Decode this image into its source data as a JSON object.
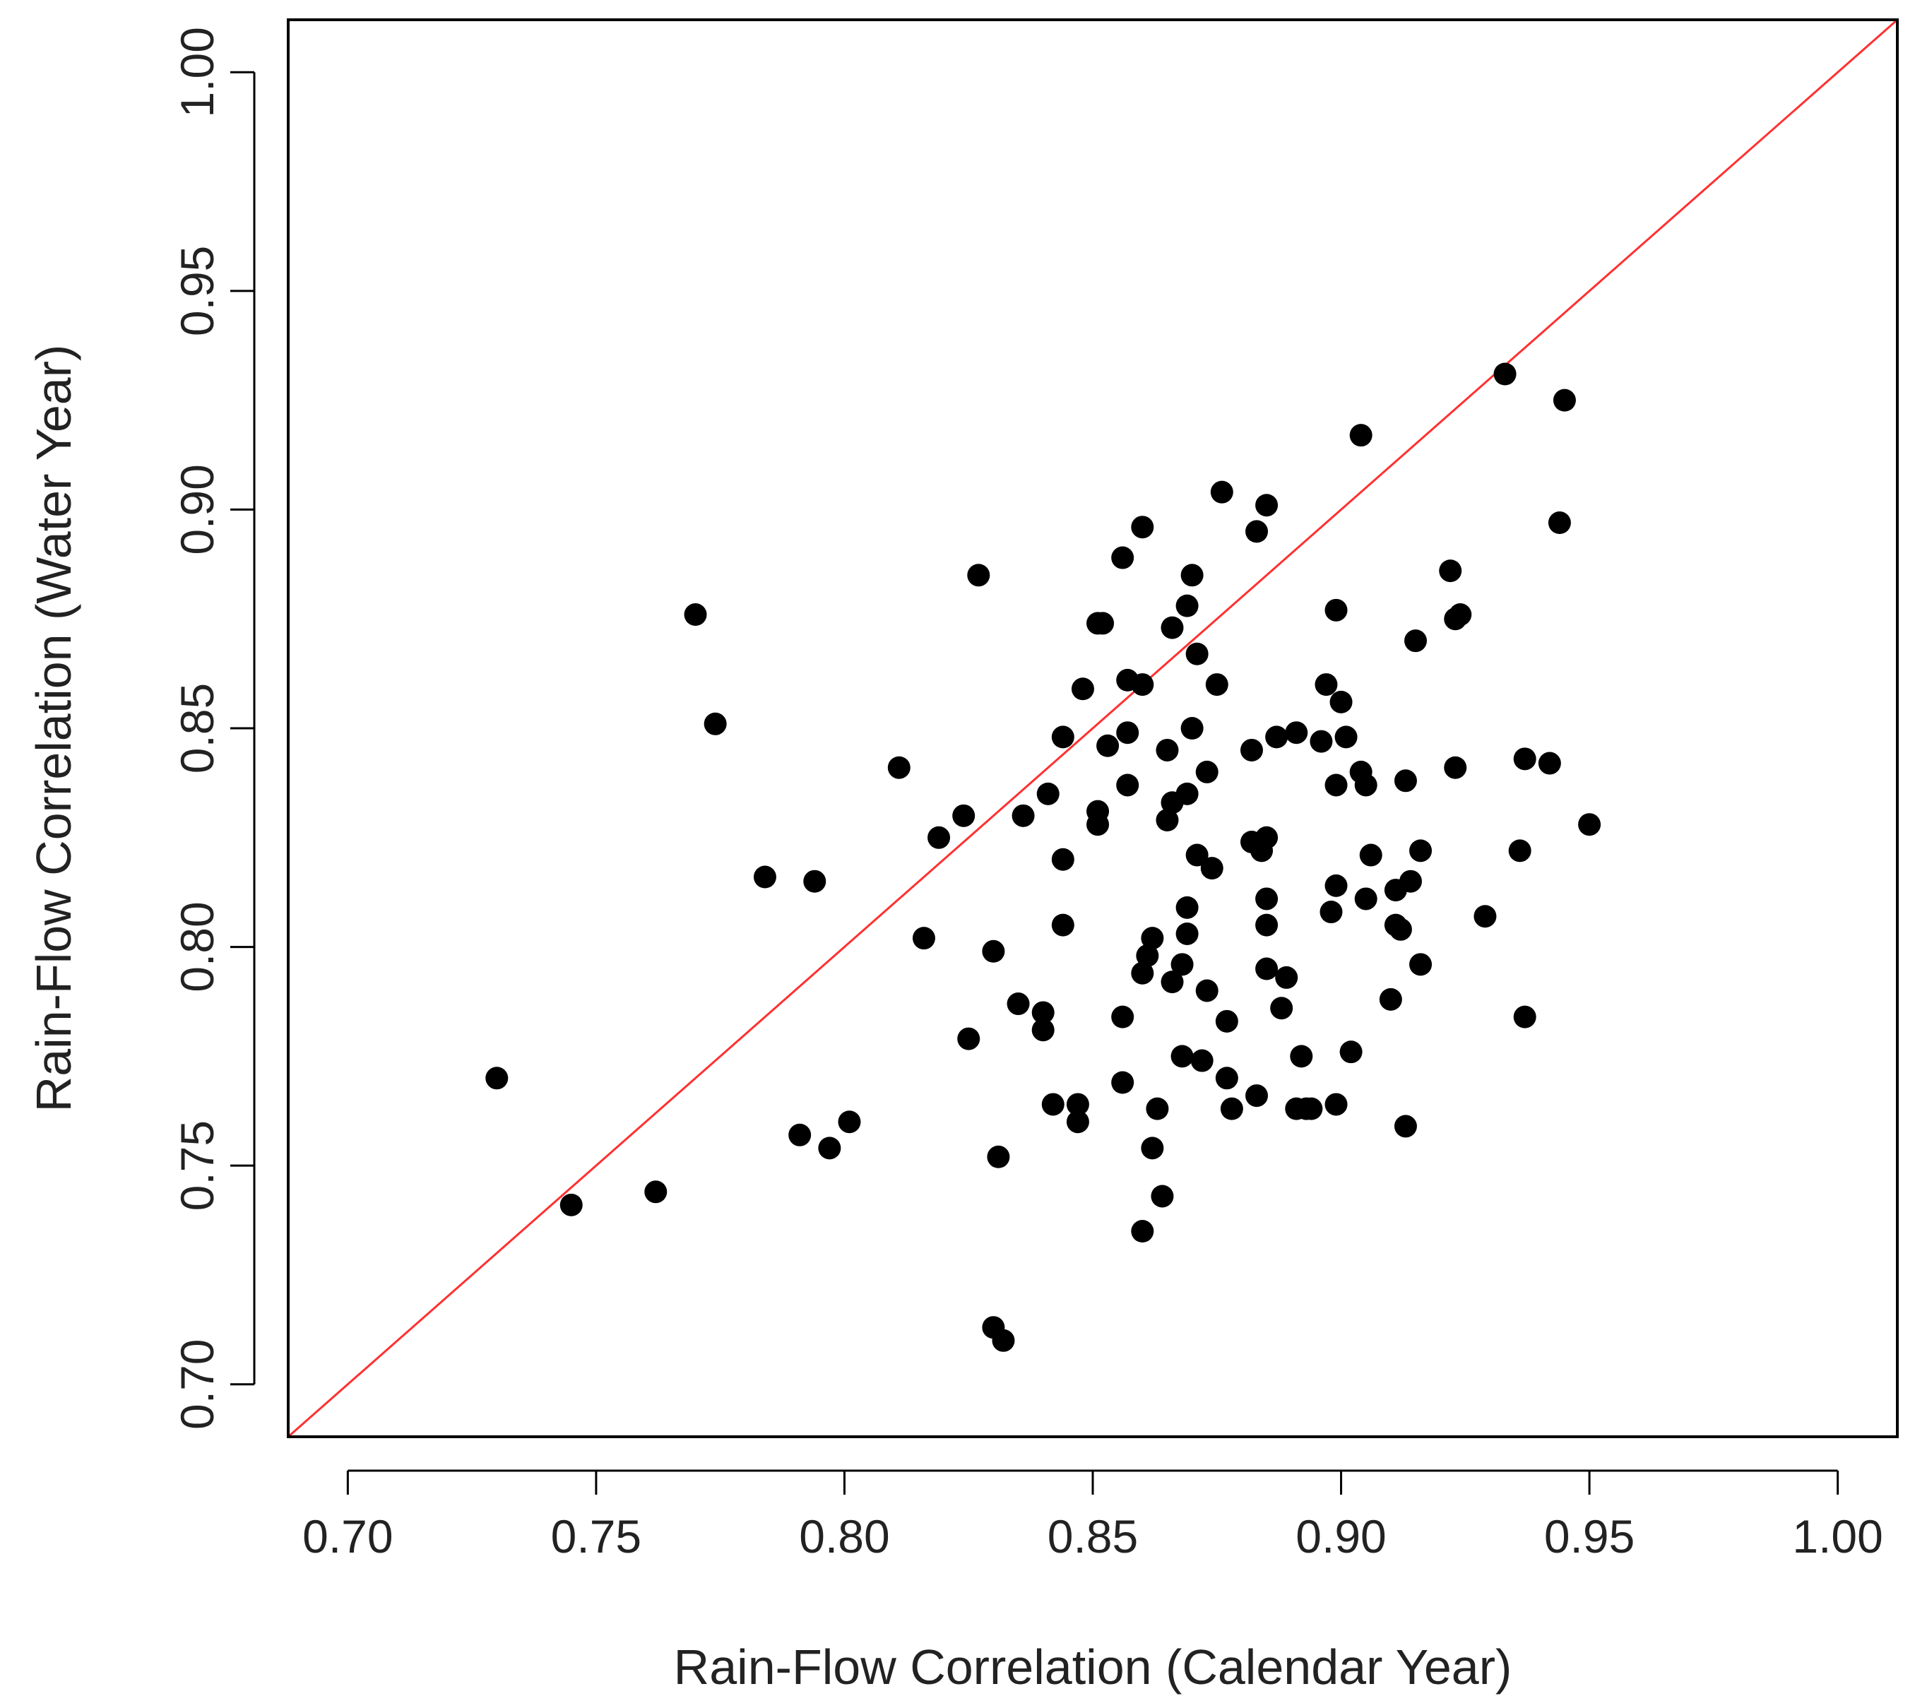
{
  "chart_data": {
    "type": "scatter",
    "title": "",
    "xlabel": "Rain-Flow Correlation (Calendar Year)",
    "ylabel": "Rain-Flow Correlation (Water Year)",
    "xlim": [
      0.688,
      1.012
    ],
    "ylim": [
      0.688,
      1.012
    ],
    "x_ticks": [
      0.7,
      0.75,
      0.8,
      0.85,
      0.9,
      0.95,
      1.0
    ],
    "y_ticks": [
      0.7,
      0.75,
      0.8,
      0.85,
      0.9,
      0.95,
      1.0
    ],
    "x_tick_labels": [
      "0.70",
      "0.75",
      "0.80",
      "0.85",
      "0.90",
      "0.95",
      "1.00"
    ],
    "y_tick_labels": [
      "0.70",
      "0.75",
      "0.80",
      "0.85",
      "0.90",
      "0.95",
      "1.00"
    ],
    "grid": false,
    "reference_line": {
      "type": "y=x",
      "color": "#ff3030"
    },
    "point_color": "#000000",
    "axis_color": "#000000",
    "points": [
      [
        0.73,
        0.77
      ],
      [
        0.745,
        0.741
      ],
      [
        0.762,
        0.744
      ],
      [
        0.77,
        0.876
      ],
      [
        0.774,
        0.851
      ],
      [
        0.784,
        0.816
      ],
      [
        0.791,
        0.757
      ],
      [
        0.794,
        0.815
      ],
      [
        0.797,
        0.754
      ],
      [
        0.801,
        0.76
      ],
      [
        0.811,
        0.841
      ],
      [
        0.816,
        0.802
      ],
      [
        0.819,
        0.825
      ],
      [
        0.824,
        0.83
      ],
      [
        0.825,
        0.779
      ],
      [
        0.827,
        0.885
      ],
      [
        0.83,
        0.799
      ],
      [
        0.831,
        0.752
      ],
      [
        0.83,
        0.713
      ],
      [
        0.832,
        0.71
      ],
      [
        0.835,
        0.787
      ],
      [
        0.836,
        0.83
      ],
      [
        0.84,
        0.785
      ],
      [
        0.84,
        0.781
      ],
      [
        0.841,
        0.835
      ],
      [
        0.842,
        0.764
      ],
      [
        0.844,
        0.848
      ],
      [
        0.844,
        0.82
      ],
      [
        0.844,
        0.805
      ],
      [
        0.847,
        0.764
      ],
      [
        0.847,
        0.76
      ],
      [
        0.848,
        0.859
      ],
      [
        0.851,
        0.874
      ],
      [
        0.851,
        0.831
      ],
      [
        0.851,
        0.828
      ],
      [
        0.852,
        0.874
      ],
      [
        0.853,
        0.846
      ],
      [
        0.856,
        0.889
      ],
      [
        0.856,
        0.784
      ],
      [
        0.856,
        0.769
      ],
      [
        0.857,
        0.861
      ],
      [
        0.857,
        0.849
      ],
      [
        0.857,
        0.837
      ],
      [
        0.86,
        0.896
      ],
      [
        0.86,
        0.86
      ],
      [
        0.86,
        0.794
      ],
      [
        0.861,
        0.798
      ],
      [
        0.86,
        0.735
      ],
      [
        0.862,
        0.802
      ],
      [
        0.862,
        0.754
      ],
      [
        0.863,
        0.763
      ],
      [
        0.864,
        0.743
      ],
      [
        0.865,
        0.845
      ],
      [
        0.865,
        0.829
      ],
      [
        0.866,
        0.873
      ],
      [
        0.866,
        0.833
      ],
      [
        0.866,
        0.792
      ],
      [
        0.868,
        0.796
      ],
      [
        0.868,
        0.775
      ],
      [
        0.869,
        0.878
      ],
      [
        0.869,
        0.835
      ],
      [
        0.869,
        0.809
      ],
      [
        0.869,
        0.803
      ],
      [
        0.87,
        0.885
      ],
      [
        0.87,
        0.85
      ],
      [
        0.871,
        0.821
      ],
      [
        0.871,
        0.867
      ],
      [
        0.872,
        0.774
      ],
      [
        0.873,
        0.84
      ],
      [
        0.873,
        0.79
      ],
      [
        0.874,
        0.818
      ],
      [
        0.875,
        0.86
      ],
      [
        0.876,
        0.904
      ],
      [
        0.877,
        0.783
      ],
      [
        0.877,
        0.77
      ],
      [
        0.878,
        0.763
      ],
      [
        0.882,
        0.845
      ],
      [
        0.882,
        0.824
      ],
      [
        0.883,
        0.895
      ],
      [
        0.883,
        0.766
      ],
      [
        0.884,
        0.822
      ],
      [
        0.885,
        0.825
      ],
      [
        0.885,
        0.811
      ],
      [
        0.885,
        0.805
      ],
      [
        0.885,
        0.795
      ],
      [
        0.885,
        0.901
      ],
      [
        0.887,
        0.848
      ],
      [
        0.888,
        0.786
      ],
      [
        0.889,
        0.793
      ],
      [
        0.891,
        0.849
      ],
      [
        0.891,
        0.763
      ],
      [
        0.892,
        0.775
      ],
      [
        0.893,
        0.763
      ],
      [
        0.894,
        0.763
      ],
      [
        0.896,
        0.847
      ],
      [
        0.897,
        0.86
      ],
      [
        0.898,
        0.808
      ],
      [
        0.899,
        0.877
      ],
      [
        0.899,
        0.837
      ],
      [
        0.899,
        0.814
      ],
      [
        0.899,
        0.764
      ],
      [
        0.9,
        0.856
      ],
      [
        0.901,
        0.848
      ],
      [
        0.902,
        0.776
      ],
      [
        0.904,
        0.84
      ],
      [
        0.904,
        0.917
      ],
      [
        0.905,
        0.837
      ],
      [
        0.905,
        0.811
      ],
      [
        0.906,
        0.821
      ],
      [
        0.91,
        0.788
      ],
      [
        0.911,
        0.813
      ],
      [
        0.911,
        0.805
      ],
      [
        0.912,
        0.804
      ],
      [
        0.913,
        0.838
      ],
      [
        0.913,
        0.759
      ],
      [
        0.914,
        0.815
      ],
      [
        0.915,
        0.87
      ],
      [
        0.916,
        0.822
      ],
      [
        0.916,
        0.796
      ],
      [
        0.922,
        0.886
      ],
      [
        0.923,
        0.875
      ],
      [
        0.923,
        0.841
      ],
      [
        0.924,
        0.876
      ],
      [
        0.929,
        0.807
      ],
      [
        0.933,
        0.931
      ],
      [
        0.936,
        0.822
      ],
      [
        0.937,
        0.843
      ],
      [
        0.937,
        0.784
      ],
      [
        0.942,
        0.842
      ],
      [
        0.944,
        0.897
      ],
      [
        0.945,
        0.925
      ],
      [
        0.95,
        0.828
      ]
    ]
  }
}
